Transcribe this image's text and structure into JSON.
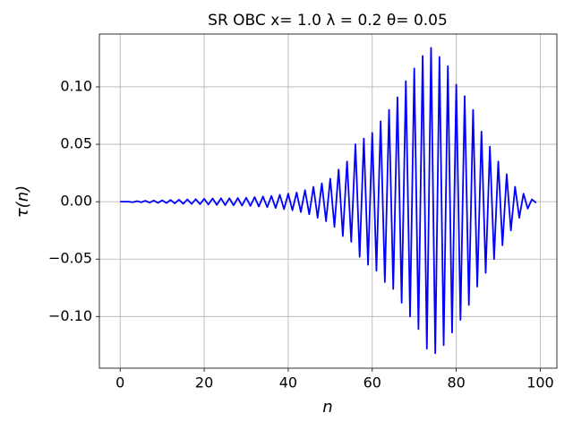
{
  "chart_data": {
    "type": "line",
    "title": "SR OBC x= 1.0 λ = 0.2 θ= 0.05",
    "x_label": "n",
    "y_label": "τ(n)",
    "x": [
      0,
      1,
      2,
      3,
      4,
      5,
      6,
      7,
      8,
      9,
      10,
      11,
      12,
      13,
      14,
      15,
      16,
      17,
      18,
      19,
      20,
      21,
      22,
      23,
      24,
      25,
      26,
      27,
      28,
      29,
      30,
      31,
      32,
      33,
      34,
      35,
      36,
      37,
      38,
      39,
      40,
      41,
      42,
      43,
      44,
      45,
      46,
      47,
      48,
      49,
      50,
      51,
      52,
      53,
      54,
      55,
      56,
      57,
      58,
      59,
      60,
      61,
      62,
      63,
      64,
      65,
      66,
      67,
      68,
      69,
      70,
      71,
      72,
      73,
      74,
      75,
      76,
      77,
      78,
      79,
      80,
      81,
      82,
      83,
      84,
      85,
      86,
      87,
      88,
      89,
      90,
      91,
      92,
      93,
      94,
      95,
      96,
      97,
      98,
      99
    ],
    "series": [
      {
        "color": "#0000ff",
        "values": [
          0.0,
          0.0,
          0.0,
          -0.0005,
          0.0005,
          -0.0005,
          0.0008,
          -0.0008,
          0.001,
          -0.001,
          0.0012,
          -0.0012,
          0.0015,
          -0.0015,
          0.0018,
          -0.0018,
          0.002,
          -0.002,
          0.0022,
          -0.0022,
          0.0025,
          -0.0025,
          0.0028,
          -0.0028,
          0.003,
          -0.003,
          0.003,
          -0.0032,
          0.0032,
          -0.0034,
          0.0035,
          -0.0037,
          0.004,
          -0.0042,
          0.0045,
          -0.0048,
          0.005,
          -0.0055,
          0.006,
          -0.0065,
          0.007,
          -0.0075,
          0.008,
          -0.009,
          0.01,
          -0.011,
          0.013,
          -0.014,
          0.016,
          -0.017,
          0.02,
          -0.022,
          0.028,
          -0.03,
          0.035,
          -0.035,
          0.05,
          -0.048,
          0.055,
          -0.055,
          0.06,
          -0.06,
          0.07,
          -0.07,
          0.08,
          -0.076,
          0.091,
          -0.088,
          0.105,
          -0.1,
          0.116,
          -0.111,
          0.127,
          -0.128,
          0.134,
          -0.132,
          0.126,
          -0.125,
          0.118,
          -0.114,
          0.102,
          -0.103,
          0.092,
          -0.09,
          0.08,
          -0.074,
          0.061,
          -0.062,
          0.048,
          -0.05,
          0.035,
          -0.038,
          0.024,
          -0.025,
          0.013,
          -0.014,
          0.007,
          -0.006,
          0.002,
          -0.001
        ]
      }
    ],
    "xlim": [
      -4.95,
      103.95
    ],
    "ylim": [
      -0.145,
      0.146
    ],
    "xticks": [
      0,
      20,
      40,
      60,
      80,
      100
    ],
    "yticks": [
      {
        "value": -0.1,
        "label": "−0.10"
      },
      {
        "value": -0.05,
        "label": "−0.05"
      },
      {
        "value": 0,
        "label": "0.00"
      },
      0.05,
      {
        "value": 0.1,
        "label": "0.10"
      }
    ],
    "grid": true
  }
}
